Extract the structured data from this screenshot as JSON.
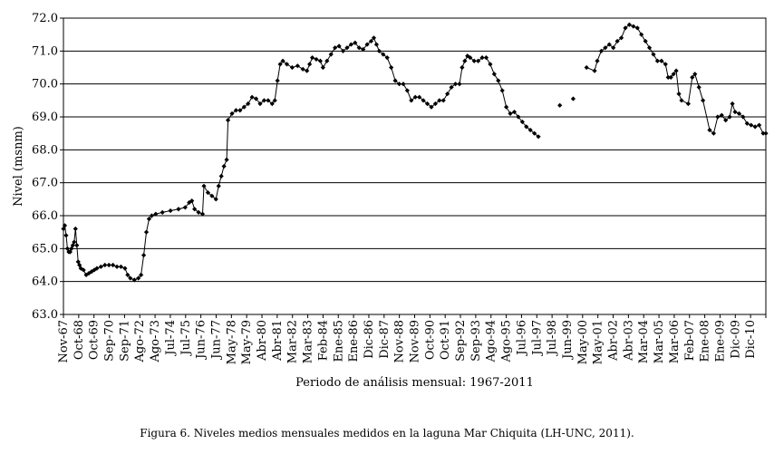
{
  "chart_data": {
    "type": "line",
    "title": "",
    "xlabel": "Periodo de análisis mensual: 1967-2011",
    "ylabel": "Nivel (msnm)",
    "ylim": [
      63.0,
      72.0
    ],
    "ytick_step": 1.0,
    "grid": "horizontal",
    "legend": "none",
    "marker": "diamond",
    "color": "#000000",
    "x_range": [
      "1967-11",
      "2011-08"
    ],
    "x_tick_labels": [
      "Nov-67",
      "Oct-68",
      "Oct-69",
      "Sep-70",
      "Sep-71",
      "Ago-72",
      "Ago-73",
      "Jul-74",
      "Jul-75",
      "Jun-76",
      "Jun-77",
      "May-78",
      "May-79",
      "Abr-80",
      "Abr-81",
      "Mar-82",
      "Mar-83",
      "Feb-84",
      "Ene-85",
      "Ene-86",
      "Dic-86",
      "Dic-87",
      "Nov-88",
      "Nov-89",
      "Oct-90",
      "Oct-91",
      "Sep-92",
      "Sep-93",
      "Ago-94",
      "Ago-95",
      "Jul-96",
      "Jul-97",
      "Jul-98",
      "Jun-99",
      "May-00",
      "May-01",
      "Abr-02",
      "Abr-03",
      "Mar-04",
      "Mar-05",
      "Mar-06",
      "Feb-07",
      "Ene-08",
      "Ene-09",
      "Dic-09",
      "Dic-10"
    ],
    "series": [
      {
        "points": [
          [
            "1967-11",
            65.6
          ],
          [
            "1967-12",
            65.7
          ],
          [
            "1968-01",
            65.4
          ],
          [
            "1968-02",
            65.0
          ],
          [
            "1968-03",
            64.9
          ],
          [
            "1968-04",
            64.9
          ],
          [
            "1968-05",
            65.0
          ],
          [
            "1968-06",
            65.1
          ],
          [
            "1968-07",
            65.2
          ],
          [
            "1968-08",
            65.6
          ],
          [
            "1968-09",
            65.1
          ],
          [
            "1968-10",
            64.6
          ],
          [
            "1968-11",
            64.5
          ],
          [
            "1968-12",
            64.4
          ],
          [
            "1969-02",
            64.35
          ],
          [
            "1969-04",
            64.2
          ],
          [
            "1969-06",
            64.25
          ],
          [
            "1969-08",
            64.3
          ],
          [
            "1969-10",
            64.35
          ],
          [
            "1969-12",
            64.4
          ],
          [
            "1970-03",
            64.45
          ],
          [
            "1970-06",
            64.5
          ],
          [
            "1970-09",
            64.5
          ],
          [
            "1970-12",
            64.5
          ],
          [
            "1971-03",
            64.45
          ],
          [
            "1971-06",
            64.45
          ],
          [
            "1971-09",
            64.4
          ],
          [
            "1971-11",
            64.2
          ],
          [
            "1972-01",
            64.1
          ],
          [
            "1972-04",
            64.05
          ],
          [
            "1972-07",
            64.1
          ],
          [
            "1972-09",
            64.2
          ],
          [
            "1972-11",
            64.8
          ],
          [
            "1973-01",
            65.5
          ],
          [
            "1973-03",
            65.9
          ],
          [
            "1973-05",
            66.0
          ],
          [
            "1973-08",
            66.05
          ],
          [
            "1974-01",
            66.1
          ],
          [
            "1974-07",
            66.15
          ],
          [
            "1975-01",
            66.2
          ],
          [
            "1975-06",
            66.25
          ],
          [
            "1975-09",
            66.4
          ],
          [
            "1975-11",
            66.45
          ],
          [
            "1976-01",
            66.2
          ],
          [
            "1976-04",
            66.1
          ],
          [
            "1976-07",
            66.05
          ],
          [
            "1976-08",
            66.9
          ],
          [
            "1976-11",
            66.7
          ],
          [
            "1977-02",
            66.6
          ],
          [
            "1977-05",
            66.5
          ],
          [
            "1977-07",
            66.9
          ],
          [
            "1977-09",
            67.2
          ],
          [
            "1977-11",
            67.5
          ],
          [
            "1978-01",
            67.7
          ],
          [
            "1978-02",
            68.9
          ],
          [
            "1978-05",
            69.1
          ],
          [
            "1978-08",
            69.2
          ],
          [
            "1978-11",
            69.2
          ],
          [
            "1979-02",
            69.3
          ],
          [
            "1979-05",
            69.4
          ],
          [
            "1979-08",
            69.6
          ],
          [
            "1979-11",
            69.55
          ],
          [
            "1980-02",
            69.4
          ],
          [
            "1980-05",
            69.5
          ],
          [
            "1980-08",
            69.5
          ],
          [
            "1980-11",
            69.4
          ],
          [
            "1981-01",
            69.5
          ],
          [
            "1981-03",
            70.1
          ],
          [
            "1981-05",
            70.6
          ],
          [
            "1981-07",
            70.7
          ],
          [
            "1981-10",
            70.6
          ],
          [
            "1982-02",
            70.5
          ],
          [
            "1982-06",
            70.55
          ],
          [
            "1982-10",
            70.45
          ],
          [
            "1983-01",
            70.4
          ],
          [
            "1983-03",
            70.6
          ],
          [
            "1983-05",
            70.8
          ],
          [
            "1983-08",
            70.75
          ],
          [
            "1983-11",
            70.7
          ],
          [
            "1984-01",
            70.5
          ],
          [
            "1984-04",
            70.7
          ],
          [
            "1984-07",
            70.9
          ],
          [
            "1984-10",
            71.1
          ],
          [
            "1985-01",
            71.15
          ],
          [
            "1985-04",
            71.0
          ],
          [
            "1985-07",
            71.1
          ],
          [
            "1985-10",
            71.2
          ],
          [
            "1986-01",
            71.25
          ],
          [
            "1986-04",
            71.1
          ],
          [
            "1986-07",
            71.05
          ],
          [
            "1986-10",
            71.2
          ],
          [
            "1987-01",
            71.3
          ],
          [
            "1987-03",
            71.4
          ],
          [
            "1987-05",
            71.2
          ],
          [
            "1987-07",
            71.0
          ],
          [
            "1987-10",
            70.9
          ],
          [
            "1988-01",
            70.8
          ],
          [
            "1988-04",
            70.5
          ],
          [
            "1988-07",
            70.1
          ],
          [
            "1988-10",
            70.0
          ],
          [
            "1989-01",
            70.0
          ],
          [
            "1989-04",
            69.8
          ],
          [
            "1989-07",
            69.5
          ],
          [
            "1989-10",
            69.6
          ],
          [
            "1990-01",
            69.6
          ],
          [
            "1990-04",
            69.5
          ],
          [
            "1990-07",
            69.4
          ],
          [
            "1990-10",
            69.3
          ],
          [
            "1991-01",
            69.4
          ],
          [
            "1991-04",
            69.5
          ],
          [
            "1991-07",
            69.5
          ],
          [
            "1991-10",
            69.7
          ],
          [
            "1992-01",
            69.9
          ],
          [
            "1992-04",
            70.0
          ],
          [
            "1992-07",
            70.0
          ],
          [
            "1992-09",
            70.5
          ],
          [
            "1992-11",
            70.7
          ],
          [
            "1993-01",
            70.85
          ],
          [
            "1993-03",
            70.8
          ],
          [
            "1993-06",
            70.7
          ],
          [
            "1993-09",
            70.7
          ],
          [
            "1993-12",
            70.8
          ],
          [
            "1994-03",
            70.8
          ],
          [
            "1994-06",
            70.6
          ],
          [
            "1994-09",
            70.3
          ],
          [
            "1994-12",
            70.1
          ],
          [
            "1995-03",
            69.8
          ],
          [
            "1995-06",
            69.3
          ],
          [
            "1995-09",
            69.1
          ],
          [
            "1995-12",
            69.15
          ],
          [
            "1996-03",
            69.0
          ],
          [
            "1996-06",
            68.85
          ],
          [
            "1996-09",
            68.7
          ],
          [
            "1996-12",
            68.6
          ],
          [
            "1997-03",
            68.5
          ],
          [
            "1997-06",
            68.4
          ],
          [
            "1998-10",
            69.35
          ],
          [
            "1999-08",
            69.55
          ],
          [
            "2000-06",
            70.5
          ],
          [
            "2000-12",
            70.4
          ],
          [
            "2001-02",
            70.7
          ],
          [
            "2001-05",
            71.0
          ],
          [
            "2001-08",
            71.1
          ],
          [
            "2001-11",
            71.2
          ],
          [
            "2002-02",
            71.1
          ],
          [
            "2002-05",
            71.3
          ],
          [
            "2002-08",
            71.4
          ],
          [
            "2002-11",
            71.7
          ],
          [
            "2003-02",
            71.8
          ],
          [
            "2003-05",
            71.75
          ],
          [
            "2003-08",
            71.7
          ],
          [
            "2003-11",
            71.5
          ],
          [
            "2004-02",
            71.3
          ],
          [
            "2004-05",
            71.1
          ],
          [
            "2004-08",
            70.9
          ],
          [
            "2004-11",
            70.7
          ],
          [
            "2005-02",
            70.7
          ],
          [
            "2005-05",
            70.6
          ],
          [
            "2005-07",
            70.2
          ],
          [
            "2005-09",
            70.2
          ],
          [
            "2005-11",
            70.3
          ],
          [
            "2006-01",
            70.4
          ],
          [
            "2006-03",
            69.7
          ],
          [
            "2006-05",
            69.5
          ],
          [
            "2006-10",
            69.4
          ],
          [
            "2007-01",
            70.2
          ],
          [
            "2007-03",
            70.3
          ],
          [
            "2007-06",
            69.9
          ],
          [
            "2007-09",
            69.5
          ],
          [
            "2008-02",
            68.6
          ],
          [
            "2008-05",
            68.5
          ],
          [
            "2008-08",
            69.0
          ],
          [
            "2008-11",
            69.05
          ],
          [
            "2009-02",
            68.9
          ],
          [
            "2009-05",
            69.0
          ],
          [
            "2009-07",
            69.4
          ],
          [
            "2009-09",
            69.15
          ],
          [
            "2009-12",
            69.1
          ],
          [
            "2010-03",
            69.0
          ],
          [
            "2010-06",
            68.8
          ],
          [
            "2010-09",
            68.75
          ],
          [
            "2010-12",
            68.7
          ],
          [
            "2011-03",
            68.75
          ],
          [
            "2011-06",
            68.5
          ],
          [
            "2011-08",
            68.5
          ]
        ]
      }
    ]
  },
  "caption": "Figura 6. Niveles medios mensuales medidos en la laguna Mar Chiquita (LH-UNC, 2011)."
}
